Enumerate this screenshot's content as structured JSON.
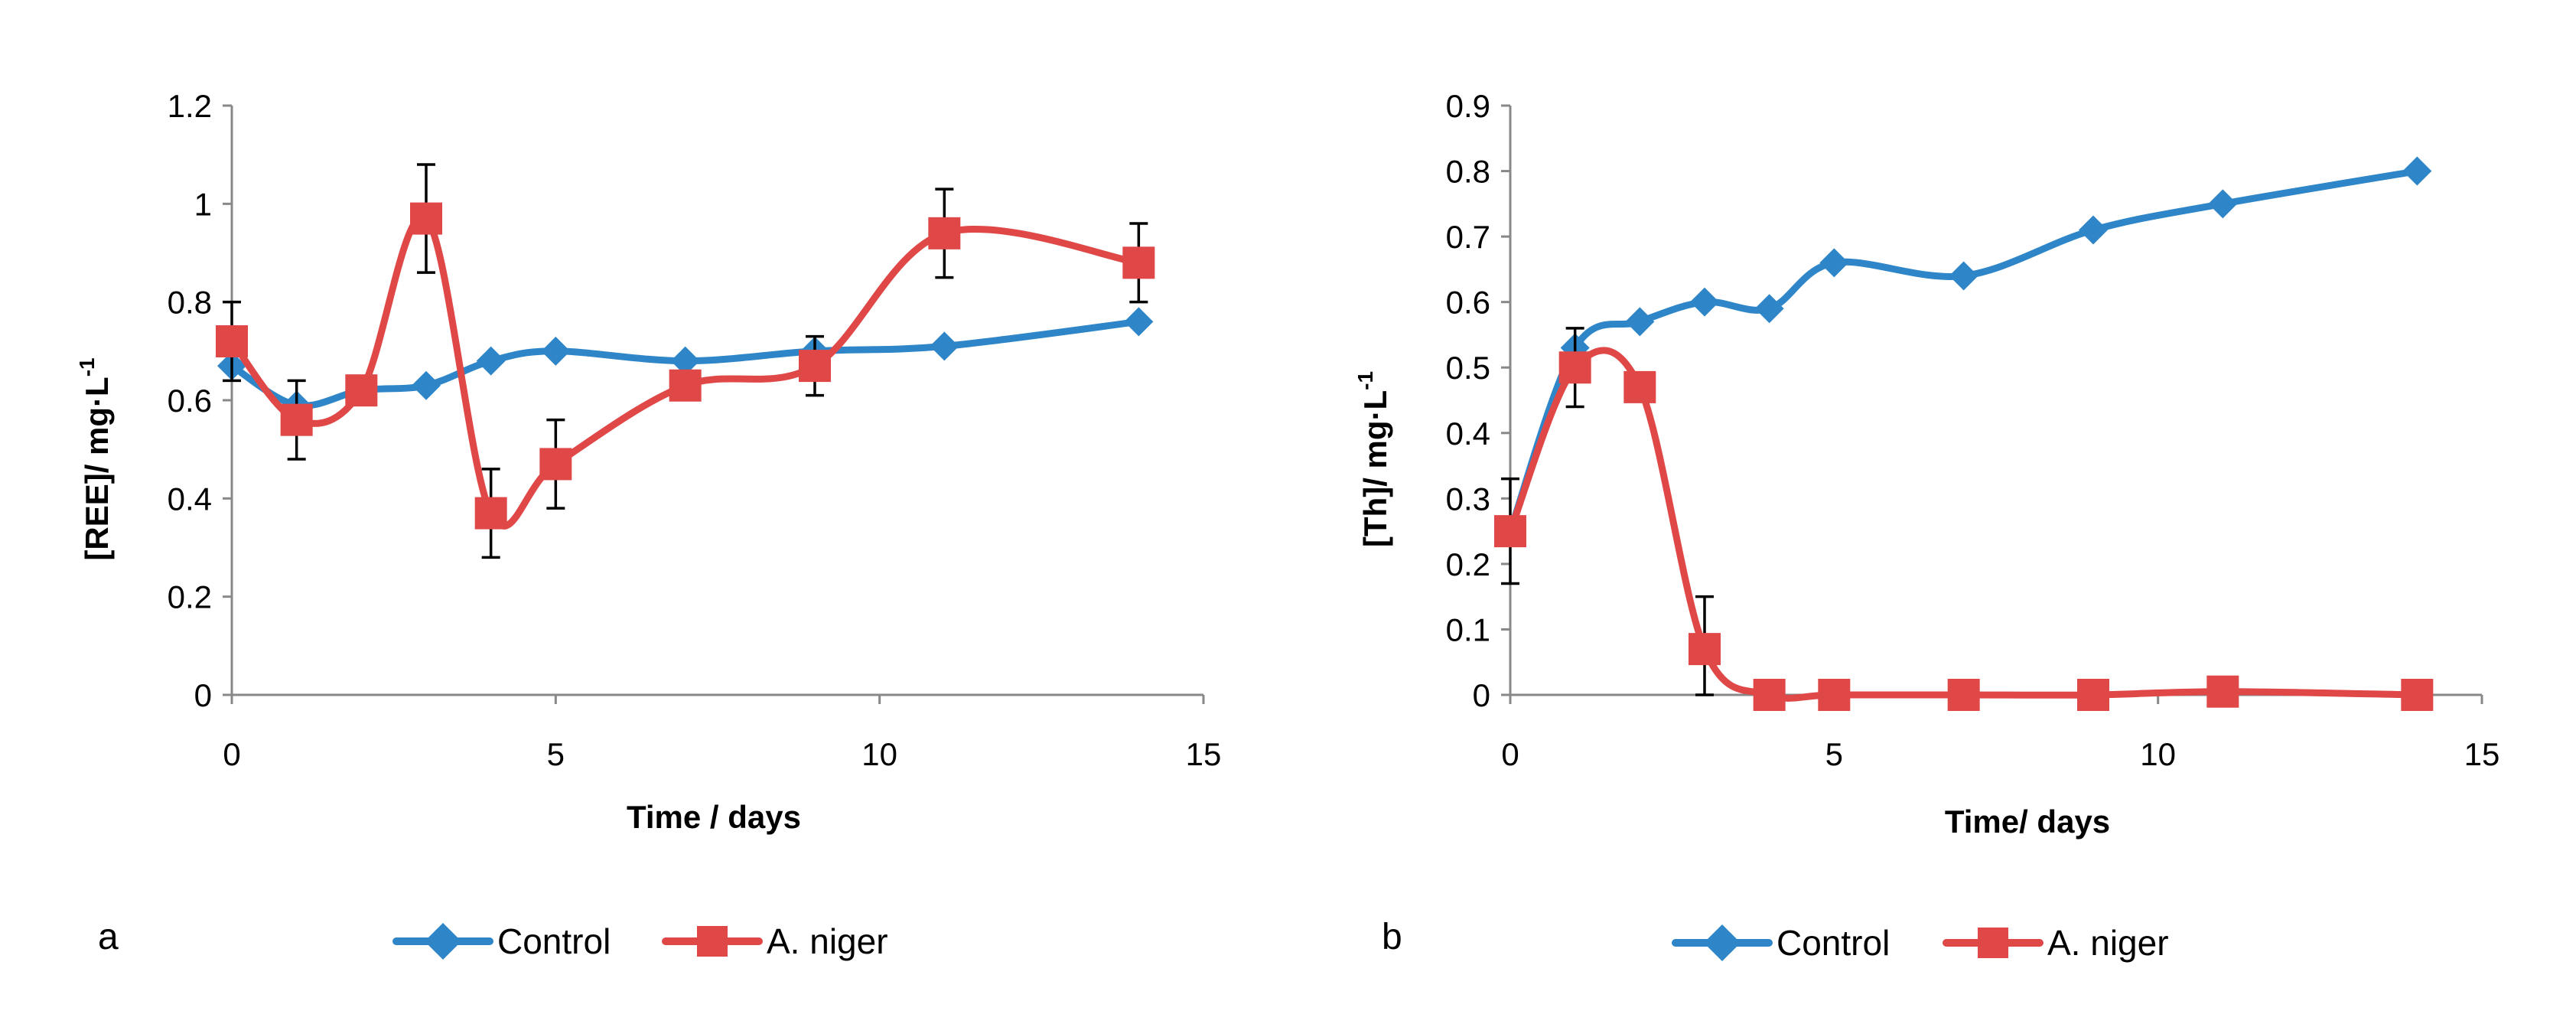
{
  "colors": {
    "control": "#2E86C8",
    "aniger": "#E04848",
    "axis": "#888888",
    "errorbar": "#000000"
  },
  "chart_data": [
    {
      "type": "line",
      "panel_label": "a",
      "xlabel": "Time / days",
      "ylabel": "[REE]/ mg·L",
      "ylabel_superscript": "-1",
      "xlim": [
        0,
        15
      ],
      "ylim": [
        0,
        1.2
      ],
      "xticks": [
        "0",
        "5",
        "10",
        "15"
      ],
      "xtick_values": [
        0,
        5,
        10,
        15
      ],
      "yticks": [
        "0",
        "0.2",
        "0.4",
        "0.6",
        "0.8",
        "1",
        "1.2"
      ],
      "ytick_values": [
        0,
        0.2,
        0.4,
        0.6,
        0.8,
        1.0,
        1.2
      ],
      "legend_position": "bottom-center",
      "series": [
        {
          "name": "Control",
          "marker": "diamond",
          "color_key": "control",
          "x": [
            0,
            1,
            2,
            3,
            4,
            5,
            7,
            9,
            11,
            14
          ],
          "y": [
            0.67,
            0.59,
            0.62,
            0.63,
            0.68,
            0.7,
            0.68,
            0.7,
            0.71,
            0.76
          ],
          "err": [
            0,
            0,
            0,
            0,
            0,
            0,
            0,
            0,
            0,
            0
          ]
        },
        {
          "name": "A. niger",
          "marker": "square",
          "color_key": "aniger",
          "x": [
            0,
            1,
            2,
            3,
            4,
            5,
            7,
            9,
            11,
            14
          ],
          "y": [
            0.72,
            0.56,
            0.62,
            0.97,
            0.37,
            0.47,
            0.63,
            0.67,
            0.94,
            0.88
          ],
          "err": [
            0.08,
            0.08,
            0,
            0.11,
            0.09,
            0.09,
            0,
            0.06,
            0.09,
            0.08
          ]
        }
      ]
    },
    {
      "type": "line",
      "panel_label": "b",
      "xlabel": "Time/ days",
      "ylabel": "[Th]/ mg·L",
      "ylabel_superscript": "-1",
      "xlim": [
        0,
        15
      ],
      "ylim": [
        0,
        0.9
      ],
      "xticks": [
        "0",
        "5",
        "10",
        "15"
      ],
      "xtick_values": [
        0,
        5,
        10,
        15
      ],
      "yticks": [
        "0",
        "0.1",
        "0.2",
        "0.3",
        "0.4",
        "0.5",
        "0.6",
        "0.7",
        "0.8",
        "0.9"
      ],
      "ytick_values": [
        0,
        0.1,
        0.2,
        0.3,
        0.4,
        0.5,
        0.6,
        0.7,
        0.8,
        0.9
      ],
      "legend_position": "bottom-center",
      "series": [
        {
          "name": "Control",
          "marker": "diamond",
          "color_key": "control",
          "x": [
            0,
            1,
            2,
            3,
            4,
            5,
            7,
            9,
            11,
            14
          ],
          "y": [
            0.25,
            0.53,
            0.57,
            0.6,
            0.59,
            0.66,
            0.64,
            0.71,
            0.75,
            0.8
          ],
          "err": [
            0,
            0,
            0,
            0,
            0,
            0,
            0,
            0,
            0,
            0
          ]
        },
        {
          "name": "A. niger",
          "marker": "square",
          "color_key": "aniger",
          "x": [
            0,
            1,
            2,
            3,
            4,
            5,
            7,
            9,
            11,
            14
          ],
          "y": [
            0.25,
            0.5,
            0.47,
            0.07,
            0.0,
            0.0,
            0.0,
            0.0,
            0.005,
            0.0
          ],
          "err": [
            0.08,
            0.06,
            0,
            0.08,
            0,
            0,
            0,
            0,
            0,
            0
          ]
        }
      ]
    }
  ]
}
